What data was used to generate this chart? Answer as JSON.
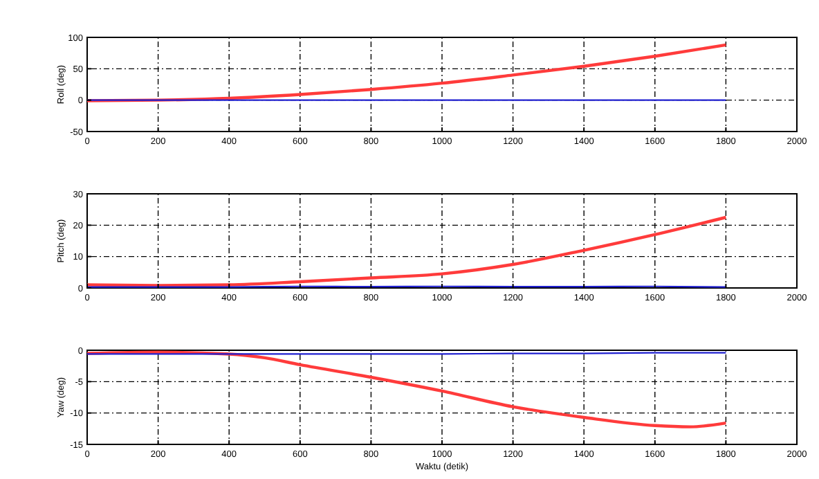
{
  "chart_data": [
    {
      "type": "line",
      "ylabel": "Roll (deg)",
      "x": [
        0,
        200,
        400,
        600,
        800,
        1000,
        1200,
        1400,
        1600,
        1800
      ],
      "xlim": [
        0,
        2000
      ],
      "xticks": [
        0,
        200,
        400,
        600,
        800,
        1000,
        1200,
        1400,
        1600,
        1800,
        2000
      ],
      "ylim": [
        -50,
        100
      ],
      "yticks": [
        -50,
        0,
        50,
        100
      ],
      "grid": true,
      "series": [
        {
          "color": "#ff3b3b",
          "values": [
            -1,
            0,
            3,
            9,
            17,
            27,
            40,
            54,
            70,
            88
          ]
        },
        {
          "color": "#2020d0",
          "values": [
            0,
            0,
            0,
            0,
            0,
            0,
            0,
            0,
            0,
            0
          ]
        }
      ]
    },
    {
      "type": "line",
      "ylabel": "Pitch (deg)",
      "x": [
        0,
        200,
        400,
        600,
        800,
        1000,
        1200,
        1400,
        1600,
        1800
      ],
      "xlim": [
        0,
        2000
      ],
      "xticks": [
        0,
        200,
        400,
        600,
        800,
        1000,
        1200,
        1400,
        1600,
        1800,
        2000
      ],
      "ylim": [
        0,
        30
      ],
      "yticks": [
        0,
        10,
        20,
        30
      ],
      "grid": true,
      "series": [
        {
          "color": "#ff3b3b",
          "values": [
            1,
            0.8,
            1,
            2,
            3.2,
            4.5,
            7.5,
            12,
            17,
            22.5
          ]
        },
        {
          "color": "#2020d0",
          "values": [
            0.3,
            0.3,
            0.3,
            0.5,
            0.4,
            0.5,
            0.4,
            0.4,
            0.5,
            0.3
          ]
        }
      ]
    },
    {
      "type": "line",
      "ylabel": "Yaw (deg)",
      "xlabel": "Waktu (detik)",
      "x": [
        0,
        200,
        400,
        500,
        600,
        800,
        1000,
        1200,
        1400,
        1600,
        1700,
        1800
      ],
      "xlim": [
        0,
        2000
      ],
      "xticks": [
        0,
        200,
        400,
        600,
        800,
        1000,
        1200,
        1400,
        1600,
        1800,
        2000
      ],
      "ylim": [
        -15,
        0
      ],
      "yticks": [
        -15,
        -10,
        -5,
        0
      ],
      "grid": true,
      "series": [
        {
          "color": "#ff3b3b",
          "values": [
            -0.5,
            -0.3,
            -0.6,
            -1.2,
            -2.3,
            -4.3,
            -6.5,
            -9,
            -10.7,
            -12,
            -12.2,
            -11.6
          ]
        },
        {
          "color": "#2020d0",
          "values": [
            -0.6,
            -0.6,
            -0.6,
            -0.6,
            -0.6,
            -0.6,
            -0.6,
            -0.5,
            -0.5,
            -0.4,
            -0.4,
            -0.4
          ]
        }
      ]
    }
  ]
}
